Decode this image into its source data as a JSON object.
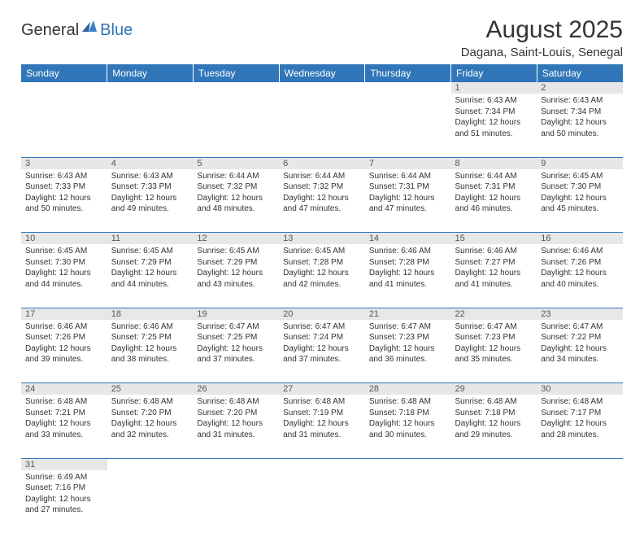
{
  "logo": {
    "text1": "General",
    "text2": "Blue"
  },
  "title": "August 2025",
  "location": "Dagana, Saint-Louis, Senegal",
  "colors": {
    "header_bg": "#3076b9",
    "header_text": "#ffffff",
    "daynum_bg": "#e7e7e7",
    "border": "#3076b9",
    "text": "#333333"
  },
  "weekdays": [
    "Sunday",
    "Monday",
    "Tuesday",
    "Wednesday",
    "Thursday",
    "Friday",
    "Saturday"
  ],
  "weeks": [
    [
      null,
      null,
      null,
      null,
      null,
      {
        "n": "1",
        "sr": "6:43 AM",
        "ss": "7:34 PM",
        "dh": "12",
        "dm": "51"
      },
      {
        "n": "2",
        "sr": "6:43 AM",
        "ss": "7:34 PM",
        "dh": "12",
        "dm": "50"
      }
    ],
    [
      {
        "n": "3",
        "sr": "6:43 AM",
        "ss": "7:33 PM",
        "dh": "12",
        "dm": "50"
      },
      {
        "n": "4",
        "sr": "6:43 AM",
        "ss": "7:33 PM",
        "dh": "12",
        "dm": "49"
      },
      {
        "n": "5",
        "sr": "6:44 AM",
        "ss": "7:32 PM",
        "dh": "12",
        "dm": "48"
      },
      {
        "n": "6",
        "sr": "6:44 AM",
        "ss": "7:32 PM",
        "dh": "12",
        "dm": "47"
      },
      {
        "n": "7",
        "sr": "6:44 AM",
        "ss": "7:31 PM",
        "dh": "12",
        "dm": "47"
      },
      {
        "n": "8",
        "sr": "6:44 AM",
        "ss": "7:31 PM",
        "dh": "12",
        "dm": "46"
      },
      {
        "n": "9",
        "sr": "6:45 AM",
        "ss": "7:30 PM",
        "dh": "12",
        "dm": "45"
      }
    ],
    [
      {
        "n": "10",
        "sr": "6:45 AM",
        "ss": "7:30 PM",
        "dh": "12",
        "dm": "44"
      },
      {
        "n": "11",
        "sr": "6:45 AM",
        "ss": "7:29 PM",
        "dh": "12",
        "dm": "44"
      },
      {
        "n": "12",
        "sr": "6:45 AM",
        "ss": "7:29 PM",
        "dh": "12",
        "dm": "43"
      },
      {
        "n": "13",
        "sr": "6:45 AM",
        "ss": "7:28 PM",
        "dh": "12",
        "dm": "42"
      },
      {
        "n": "14",
        "sr": "6:46 AM",
        "ss": "7:28 PM",
        "dh": "12",
        "dm": "41"
      },
      {
        "n": "15",
        "sr": "6:46 AM",
        "ss": "7:27 PM",
        "dh": "12",
        "dm": "41"
      },
      {
        "n": "16",
        "sr": "6:46 AM",
        "ss": "7:26 PM",
        "dh": "12",
        "dm": "40"
      }
    ],
    [
      {
        "n": "17",
        "sr": "6:46 AM",
        "ss": "7:26 PM",
        "dh": "12",
        "dm": "39"
      },
      {
        "n": "18",
        "sr": "6:46 AM",
        "ss": "7:25 PM",
        "dh": "12",
        "dm": "38"
      },
      {
        "n": "19",
        "sr": "6:47 AM",
        "ss": "7:25 PM",
        "dh": "12",
        "dm": "37"
      },
      {
        "n": "20",
        "sr": "6:47 AM",
        "ss": "7:24 PM",
        "dh": "12",
        "dm": "37"
      },
      {
        "n": "21",
        "sr": "6:47 AM",
        "ss": "7:23 PM",
        "dh": "12",
        "dm": "36"
      },
      {
        "n": "22",
        "sr": "6:47 AM",
        "ss": "7:23 PM",
        "dh": "12",
        "dm": "35"
      },
      {
        "n": "23",
        "sr": "6:47 AM",
        "ss": "7:22 PM",
        "dh": "12",
        "dm": "34"
      }
    ],
    [
      {
        "n": "24",
        "sr": "6:48 AM",
        "ss": "7:21 PM",
        "dh": "12",
        "dm": "33"
      },
      {
        "n": "25",
        "sr": "6:48 AM",
        "ss": "7:20 PM",
        "dh": "12",
        "dm": "32"
      },
      {
        "n": "26",
        "sr": "6:48 AM",
        "ss": "7:20 PM",
        "dh": "12",
        "dm": "31"
      },
      {
        "n": "27",
        "sr": "6:48 AM",
        "ss": "7:19 PM",
        "dh": "12",
        "dm": "31"
      },
      {
        "n": "28",
        "sr": "6:48 AM",
        "ss": "7:18 PM",
        "dh": "12",
        "dm": "30"
      },
      {
        "n": "29",
        "sr": "6:48 AM",
        "ss": "7:18 PM",
        "dh": "12",
        "dm": "29"
      },
      {
        "n": "30",
        "sr": "6:48 AM",
        "ss": "7:17 PM",
        "dh": "12",
        "dm": "28"
      }
    ],
    [
      {
        "n": "31",
        "sr": "6:49 AM",
        "ss": "7:16 PM",
        "dh": "12",
        "dm": "27"
      },
      null,
      null,
      null,
      null,
      null,
      null
    ]
  ]
}
